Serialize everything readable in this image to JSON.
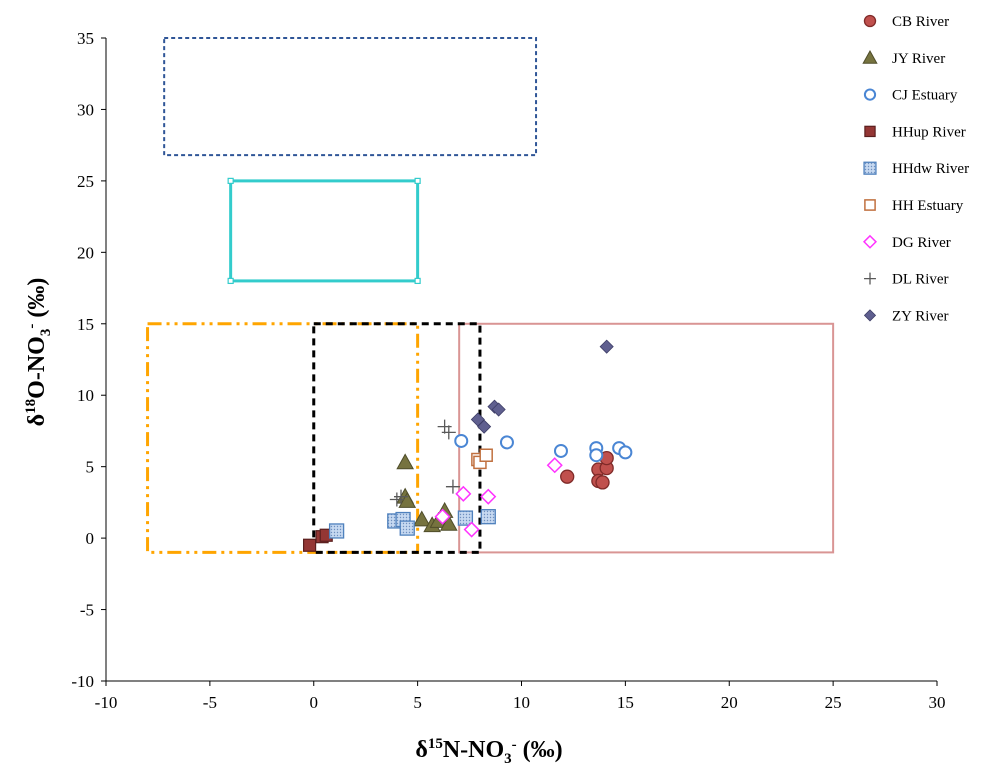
{
  "chart_data": {
    "type": "scatter",
    "xlabel": {
      "base": "δ",
      "sup": "15",
      "mid": "N-NO",
      "sub": "3",
      "post": "-",
      "unit": " (‰)"
    },
    "ylabel": {
      "base": "δ",
      "sup": "18",
      "mid": "O-NO",
      "sub": "3",
      "post": "-",
      "unit": " (‰)"
    },
    "xlim": [
      -10,
      30
    ],
    "ylim": [
      -10,
      35
    ],
    "xticks": [
      "-10",
      "-5",
      "0",
      "5",
      "10",
      "15",
      "20",
      "25",
      "30"
    ],
    "yticks": [
      "-10",
      "-5",
      "0",
      "5",
      "10",
      "15",
      "20",
      "25",
      "30",
      "35"
    ],
    "grid": false,
    "legend_position": "top-right",
    "series": [
      {
        "name": "CB River",
        "marker": "circle",
        "fill": "#c0504d",
        "stroke": "#7f2a28",
        "points": [
          [
            12.2,
            4.3
          ],
          [
            13.7,
            4.8
          ],
          [
            13.7,
            4.0
          ],
          [
            13.9,
            3.9
          ],
          [
            14.1,
            4.9
          ],
          [
            14.1,
            5.6
          ]
        ]
      },
      {
        "name": "JY River",
        "marker": "triangle",
        "fill": "#76733f",
        "stroke": "#4f4d2a",
        "points": [
          [
            4.4,
            5.3
          ],
          [
            4.4,
            2.9
          ],
          [
            4.5,
            2.6
          ],
          [
            5.2,
            1.3
          ],
          [
            5.7,
            0.9
          ],
          [
            6.0,
            1.2
          ],
          [
            6.3,
            1.9
          ],
          [
            6.5,
            1.0
          ]
        ]
      },
      {
        "name": "CJ Estuary",
        "marker": "circle-open",
        "fill": "#ffffff",
        "stroke": "#4a86d4",
        "points": [
          [
            7.1,
            6.8
          ],
          [
            9.3,
            6.7
          ],
          [
            11.9,
            6.1
          ],
          [
            13.6,
            6.3
          ],
          [
            13.6,
            5.8
          ],
          [
            14.7,
            6.3
          ],
          [
            15.0,
            6.0
          ]
        ]
      },
      {
        "name": "HHup River",
        "marker": "square",
        "fill": "#943634",
        "stroke": "#5a1f1e",
        "points": [
          [
            -0.2,
            -0.5
          ],
          [
            0.4,
            0.1
          ],
          [
            0.6,
            0.2
          ]
        ]
      },
      {
        "name": "HHdw River",
        "marker": "square-hatched",
        "fill": "#b8cce4",
        "stroke": "#4f81bd",
        "points": [
          [
            1.1,
            0.5
          ],
          [
            3.9,
            1.2
          ],
          [
            4.3,
            1.3
          ],
          [
            4.5,
            0.7
          ],
          [
            7.3,
            1.4
          ],
          [
            8.4,
            1.5
          ]
        ]
      },
      {
        "name": "HH Estuary",
        "marker": "square-open",
        "fill": "#ffffff",
        "stroke": "#c0703f",
        "points": [
          [
            7.9,
            5.5
          ],
          [
            8.0,
            5.3
          ],
          [
            8.3,
            5.8
          ]
        ]
      },
      {
        "name": "DG River",
        "marker": "diamond-open",
        "fill": "#ffffff",
        "stroke": "#ff33ff",
        "points": [
          [
            6.2,
            1.5
          ],
          [
            7.2,
            3.1
          ],
          [
            7.6,
            0.6
          ],
          [
            8.4,
            2.9
          ],
          [
            11.6,
            5.1
          ]
        ]
      },
      {
        "name": "DL River",
        "marker": "plus",
        "fill": "none",
        "stroke": "#595959",
        "points": [
          [
            4.0,
            2.7
          ],
          [
            4.2,
            2.9
          ],
          [
            6.3,
            7.8
          ],
          [
            6.5,
            7.4
          ],
          [
            6.7,
            3.6
          ]
        ]
      },
      {
        "name": "ZY River",
        "marker": "diamond",
        "fill": "#5f5f8f",
        "stroke": "#3d3d66",
        "points": [
          [
            7.9,
            8.3
          ],
          [
            8.2,
            7.8
          ],
          [
            8.7,
            9.2
          ],
          [
            8.9,
            9.0
          ],
          [
            14.1,
            13.4
          ]
        ]
      }
    ],
    "regions": [
      {
        "x": [
          -7.2,
          10.7
        ],
        "y": [
          26.8,
          35
        ],
        "stroke": "#2f5597",
        "dash": "4,3",
        "width": 2
      },
      {
        "x": [
          -4,
          5
        ],
        "y": [
          18,
          25
        ],
        "stroke": "#33cccc",
        "dash": "",
        "width": 3,
        "corner_markers": true
      },
      {
        "x": [
          -8,
          5
        ],
        "y": [
          -1,
          15
        ],
        "stroke": "#ffa500",
        "dash": "14,5,3,5,3,5",
        "width": 3
      },
      {
        "x": [
          7,
          25
        ],
        "y": [
          -1,
          15
        ],
        "stroke": "#d99594",
        "dash": "",
        "width": 2
      },
      {
        "x": [
          0,
          8
        ],
        "y": [
          -1,
          15
        ],
        "stroke": "#000000",
        "dash": "7,5",
        "width": 3
      }
    ]
  }
}
